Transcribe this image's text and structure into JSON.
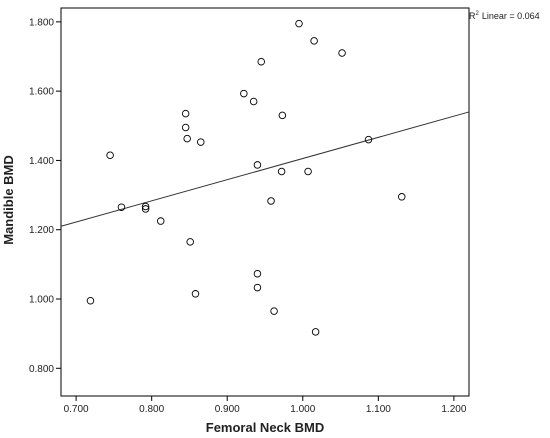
{
  "chart_data": {
    "type": "scatter",
    "xlabel": "Femoral Neck BMD",
    "ylabel": "Mandible BMD",
    "xlim": [
      0.68,
      1.22
    ],
    "ylim": [
      0.72,
      1.84
    ],
    "x_ticks": [
      "0.700",
      "0.800",
      "0.900",
      "1.000",
      "1.100",
      "1.200"
    ],
    "y_ticks": [
      "0.800",
      "1.000",
      "1.200",
      "1.400",
      "1.600",
      "1.800"
    ],
    "annotation": {
      "label": "Linear = 0.064",
      "prefix": "R",
      "sup": "2"
    },
    "fit_line": {
      "x": [
        0.68,
        1.22
      ],
      "y": [
        1.21,
        1.54
      ]
    },
    "marker": "open-circle",
    "points": [
      {
        "x": 0.719,
        "y": 0.995
      },
      {
        "x": 0.745,
        "y": 1.415
      },
      {
        "x": 0.76,
        "y": 1.265
      },
      {
        "x": 0.792,
        "y": 1.26
      },
      {
        "x": 0.792,
        "y": 1.267
      },
      {
        "x": 0.812,
        "y": 1.225
      },
      {
        "x": 0.845,
        "y": 1.535
      },
      {
        "x": 0.845,
        "y": 1.495
      },
      {
        "x": 0.847,
        "y": 1.463
      },
      {
        "x": 0.851,
        "y": 1.165
      },
      {
        "x": 0.858,
        "y": 1.015
      },
      {
        "x": 0.865,
        "y": 1.453
      },
      {
        "x": 0.922,
        "y": 1.593
      },
      {
        "x": 0.935,
        "y": 1.57
      },
      {
        "x": 0.94,
        "y": 1.387
      },
      {
        "x": 0.94,
        "y": 1.073
      },
      {
        "x": 0.94,
        "y": 1.033
      },
      {
        "x": 0.945,
        "y": 1.685
      },
      {
        "x": 0.958,
        "y": 1.283
      },
      {
        "x": 0.962,
        "y": 0.965
      },
      {
        "x": 0.972,
        "y": 1.368
      },
      {
        "x": 0.973,
        "y": 1.53
      },
      {
        "x": 0.995,
        "y": 1.795
      },
      {
        "x": 1.007,
        "y": 1.368
      },
      {
        "x": 1.015,
        "y": 1.745
      },
      {
        "x": 1.017,
        "y": 0.905
      },
      {
        "x": 1.052,
        "y": 1.71
      },
      {
        "x": 1.087,
        "y": 1.46
      },
      {
        "x": 1.131,
        "y": 1.295
      }
    ]
  }
}
